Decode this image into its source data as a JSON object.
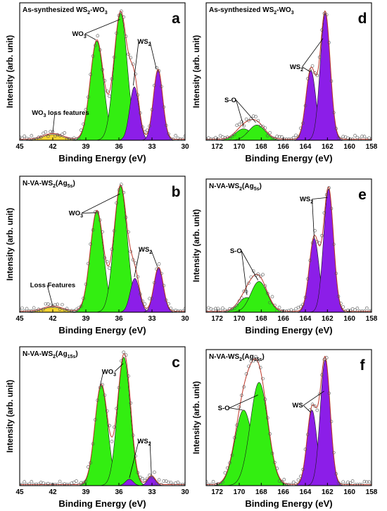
{
  "chart_data": [
    {
      "panel": "a",
      "type": "area",
      "title": "As-synthesized WS₂-WO₃",
      "xlabel": "Binding Energy (eV)",
      "ylabel": "Intensity (arb. unit)",
      "xlim": [
        45,
        30
      ],
      "ylim": [
        0,
        1.08
      ],
      "xticks": [
        "45",
        "42",
        "39",
        "36",
        "33",
        "30"
      ],
      "peaks": [
        {
          "label": "WO₃ loss features",
          "center": 42.0,
          "height": 0.045,
          "sigma": 0.9,
          "color": "#f5d430"
        },
        {
          "label": "WO₃",
          "center": 38.0,
          "height": 0.78,
          "sigma": 0.6,
          "color": "#33ee11"
        },
        {
          "label": "WO₃",
          "center": 35.85,
          "height": 1.0,
          "sigma": 0.6,
          "color": "#33ee11"
        },
        {
          "label": "WS₂",
          "center": 34.6,
          "height": 0.42,
          "sigma": 0.42,
          "color": "#8c1ee8"
        },
        {
          "label": "WS₂",
          "center": 32.45,
          "height": 0.55,
          "sigma": 0.42,
          "color": "#8c1ee8"
        }
      ],
      "annotations": [
        {
          "text": "WO₃",
          "x": 39.6,
          "y": 0.82,
          "targets": [
            [
              38.1,
              0.79
            ],
            [
              35.9,
              0.95
            ]
          ]
        },
        {
          "text": "WS₂",
          "x": 33.7,
          "y": 0.76,
          "targets": [
            [
              34.7,
              0.43
            ],
            [
              32.6,
              0.56
            ]
          ]
        },
        {
          "text": "WO₃ loss features",
          "x": 41.3,
          "y": 0.2,
          "targets": [
            [
              42.0,
              0.06
            ]
          ]
        }
      ]
    },
    {
      "panel": "b",
      "type": "area",
      "title": "N-VA-WS₂(Ag₅ₛ)",
      "xlabel": "Binding Energy (eV)",
      "ylabel": "Intensity (arb. unit)",
      "xlim": [
        45,
        30
      ],
      "ylim": [
        0,
        1.08
      ],
      "xticks": [
        "45",
        "42",
        "39",
        "36",
        "33",
        "30"
      ],
      "peaks": [
        {
          "label": "Loss Features",
          "center": 42.0,
          "height": 0.04,
          "sigma": 0.9,
          "color": "#f5d430"
        },
        {
          "label": "WO₃",
          "center": 38.0,
          "height": 0.8,
          "sigma": 0.6,
          "color": "#33ee11"
        },
        {
          "label": "WO₃",
          "center": 35.85,
          "height": 1.0,
          "sigma": 0.6,
          "color": "#33ee11"
        },
        {
          "label": "WS₂",
          "center": 34.55,
          "height": 0.27,
          "sigma": 0.42,
          "color": "#8c1ee8"
        },
        {
          "label": "WS₂",
          "center": 32.4,
          "height": 0.35,
          "sigma": 0.42,
          "color": "#8c1ee8"
        }
      ],
      "annotations": [
        {
          "text": "WO₃",
          "x": 39.9,
          "y": 0.77,
          "targets": [
            [
              38.1,
              0.79
            ],
            [
              35.9,
              0.94
            ]
          ]
        },
        {
          "text": "WS₂",
          "x": 33.6,
          "y": 0.48,
          "targets": [
            [
              34.6,
              0.28
            ],
            [
              32.5,
              0.36
            ]
          ]
        },
        {
          "text": "Loss Features",
          "x": 42.0,
          "y": 0.2,
          "targets": [
            [
              42.0,
              0.05
            ]
          ]
        }
      ]
    },
    {
      "panel": "c",
      "type": "area",
      "title": "N-VA-WS₂(Ag₁₅ₛ)",
      "xlabel": "Binding Energy (eV)",
      "ylabel": "Intensity (arb. unit)",
      "xlim": [
        45,
        30
      ],
      "ylim": [
        0,
        1.08
      ],
      "xticks": [
        "45",
        "42",
        "39",
        "36",
        "33",
        "30"
      ],
      "peaks": [
        {
          "label": "WO₃",
          "center": 37.6,
          "height": 0.78,
          "sigma": 0.58,
          "color": "#33ee11"
        },
        {
          "label": "WO₃",
          "center": 35.55,
          "height": 1.0,
          "sigma": 0.58,
          "color": "#33ee11"
        },
        {
          "label": "WS₂",
          "center": 35.05,
          "height": 0.05,
          "sigma": 0.35,
          "color": "#8c1ee8"
        },
        {
          "label": "WS₂",
          "center": 33.05,
          "height": 0.07,
          "sigma": 0.35,
          "color": "#8c1ee8"
        }
      ],
      "annotations": [
        {
          "text": "WO₃",
          "x": 36.9,
          "y": 0.87,
          "targets": [
            [
              37.7,
              0.78
            ],
            [
              35.6,
              0.95
            ]
          ]
        },
        {
          "text": "WS₂",
          "x": 33.7,
          "y": 0.33,
          "targets": [
            [
              35.05,
              0.06
            ],
            [
              33.05,
              0.08
            ]
          ]
        }
      ]
    },
    {
      "panel": "d",
      "type": "area",
      "title": "As-synthesized WS₂-WO₃",
      "xlabel": "Binding Energy (eV)",
      "ylabel": "Intensity (arb. unit)",
      "xlim": [
        173,
        158
      ],
      "ylim": [
        0,
        1.08
      ],
      "xticks": [
        "172",
        "170",
        "168",
        "166",
        "164",
        "162",
        "160",
        "158"
      ],
      "peaks": [
        {
          "label": "S-O",
          "center": 169.6,
          "height": 0.09,
          "sigma": 0.75,
          "color": "#33ee11"
        },
        {
          "label": "S-O",
          "center": 168.4,
          "height": 0.12,
          "sigma": 0.75,
          "color": "#33ee11"
        },
        {
          "label": "WS₂",
          "center": 163.5,
          "height": 0.55,
          "sigma": 0.45,
          "color": "#8c1ee8"
        },
        {
          "label": "WS₂",
          "center": 162.2,
          "height": 1.0,
          "sigma": 0.45,
          "color": "#8c1ee8"
        }
      ],
      "annotations": [
        {
          "text": "S-O",
          "x": 170.8,
          "y": 0.3,
          "targets": [
            [
              169.6,
              0.11
            ],
            [
              168.5,
              0.14
            ]
          ]
        },
        {
          "text": "WS₂",
          "x": 164.8,
          "y": 0.56,
          "targets": [
            [
              163.6,
              0.54
            ],
            [
              162.4,
              0.8
            ]
          ]
        }
      ]
    },
    {
      "panel": "e",
      "type": "area",
      "title": "N-VA-WS₂(Ag₅ₛ)",
      "xlabel": "Binding Energy (eV)",
      "ylabel": "Intensity (arb. unit)",
      "xlim": [
        173,
        158
      ],
      "ylim": [
        0,
        1.08
      ],
      "xticks": [
        "172",
        "170",
        "168",
        "166",
        "164",
        "162",
        "160",
        "158"
      ],
      "peaks": [
        {
          "label": "S-O",
          "center": 169.3,
          "height": 0.12,
          "sigma": 0.75,
          "color": "#33ee11"
        },
        {
          "label": "S-O",
          "center": 168.2,
          "height": 0.25,
          "sigma": 0.75,
          "color": "#33ee11"
        },
        {
          "label": "WS₂",
          "center": 163.2,
          "height": 0.6,
          "sigma": 0.45,
          "color": "#8c1ee8"
        },
        {
          "label": "WS₂",
          "center": 161.9,
          "height": 1.0,
          "sigma": 0.45,
          "color": "#8c1ee8"
        }
      ],
      "annotations": [
        {
          "text": "S-O",
          "x": 170.3,
          "y": 0.48,
          "targets": [
            [
              169.3,
              0.14
            ],
            [
              168.3,
              0.26
            ]
          ]
        },
        {
          "text": "WS₂",
          "x": 163.9,
          "y": 0.9,
          "targets": [
            [
              163.2,
              0.6
            ],
            [
              162.0,
              0.93
            ]
          ]
        }
      ]
    },
    {
      "panel": "f",
      "type": "area",
      "title": "N-VA-WS₂(Ag₁₅ₛ)",
      "xlabel": "Binding Energy (eV)",
      "ylabel": "Intensity (arb. unit)",
      "xlim": [
        173,
        158
      ],
      "ylim": [
        0,
        1.08
      ],
      "xticks": [
        "172",
        "170",
        "168",
        "166",
        "164",
        "162",
        "160",
        "158"
      ],
      "peaks": [
        {
          "label": "S-O",
          "center": 169.6,
          "height": 0.6,
          "sigma": 0.8,
          "color": "#33ee11"
        },
        {
          "label": "S-O",
          "center": 168.2,
          "height": 0.82,
          "sigma": 0.8,
          "color": "#33ee11"
        },
        {
          "label": "WS₂",
          "center": 163.4,
          "height": 0.6,
          "sigma": 0.45,
          "color": "#8c1ee8"
        },
        {
          "label": "WS₂",
          "center": 162.2,
          "height": 1.0,
          "sigma": 0.45,
          "color": "#8c1ee8"
        }
      ],
      "annotations": [
        {
          "text": "S-O",
          "x": 171.4,
          "y": 0.6,
          "targets": [
            [
              169.7,
              0.6
            ],
            [
              168.3,
              0.72
            ]
          ]
        },
        {
          "text": "WS",
          "x": 164.7,
          "y": 0.62,
          "targets": [
            [
              163.5,
              0.58
            ],
            [
              162.3,
              0.75
            ]
          ]
        }
      ]
    }
  ]
}
